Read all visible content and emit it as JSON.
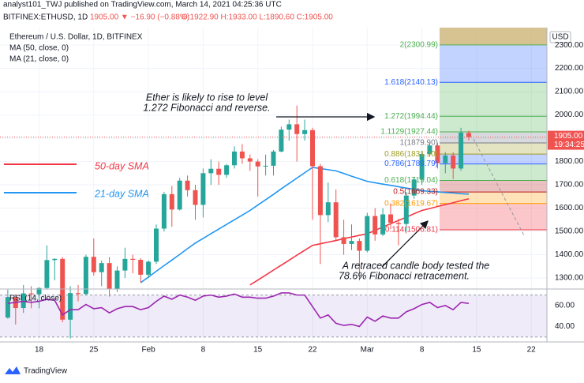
{
  "header": {
    "publisher": "analyst101_TWJ published on TradingView.com, March 14, 2021 04:25:36 UTC",
    "symbol": "BITFINEX:ETHUSD, 1D",
    "change": "1905.00 ▼ −16.90 (−0.88%)",
    "ohlc": "O:1922.90 H:1933.00 L:1890.60 C:1905.00",
    "brand": "TradingView"
  },
  "chart_data": [
    {
      "type": "candlestick",
      "title": "Ethereum / U.S. Dollar, 1D, BITFINEX",
      "axis_unit": "USD",
      "price_label": "1905.00",
      "countdown": "19:34:25",
      "x": [
        "2021-01-14",
        "2021-01-15",
        "2021-01-16",
        "2021-01-17",
        "2021-01-18",
        "2021-01-19",
        "2021-01-20",
        "2021-01-21",
        "2021-01-22",
        "2021-01-23",
        "2021-01-24",
        "2021-01-25",
        "2021-01-26",
        "2021-01-27",
        "2021-01-28",
        "2021-01-29",
        "2021-01-30",
        "2021-01-31",
        "2021-02-01",
        "2021-02-02",
        "2021-02-03",
        "2021-02-04",
        "2021-02-05",
        "2021-02-06",
        "2021-02-07",
        "2021-02-08",
        "2021-02-09",
        "2021-02-10",
        "2021-02-11",
        "2021-02-12",
        "2021-02-13",
        "2021-02-14",
        "2021-02-15",
        "2021-02-16",
        "2021-02-17",
        "2021-02-18",
        "2021-02-19",
        "2021-02-20",
        "2021-02-21",
        "2021-02-22",
        "2021-02-23",
        "2021-02-24",
        "2021-02-25",
        "2021-02-26",
        "2021-02-27",
        "2021-02-28",
        "2021-03-01",
        "2021-03-02",
        "2021-03-03",
        "2021-03-04",
        "2021-03-05",
        "2021-03-06",
        "2021-03-07",
        "2021-03-08",
        "2021-03-09",
        "2021-03-10",
        "2021-03-11",
        "2021-03-12",
        "2021-03-13",
        "2021-03-14"
      ],
      "open": [
        1130,
        1218,
        1171,
        1234,
        1230,
        1257,
        1377,
        1382,
        1121,
        1235,
        1231,
        1391,
        1325,
        1364,
        1252,
        1332,
        1382,
        1378,
        1314,
        1370,
        1512,
        1660,
        1594,
        1718,
        1677,
        1614,
        1750,
        1769,
        1743,
        1784,
        1843,
        1814,
        1800,
        1779,
        1782,
        1843,
        1937,
        1960,
        1918,
        1935,
        1780,
        1570,
        1625,
        1475,
        1446,
        1459,
        1417,
        1566,
        1487,
        1573,
        1537,
        1532,
        1654,
        1723,
        1832,
        1869,
        1793,
        1826,
        1770,
        1922.9
      ],
      "high": [
        1250,
        1230,
        1270,
        1265,
        1260,
        1440,
        1385,
        1390,
        1265,
        1270,
        1400,
        1470,
        1375,
        1390,
        1350,
        1430,
        1400,
        1385,
        1375,
        1530,
        1670,
        1695,
        1730,
        1740,
        1700,
        1770,
        1810,
        1800,
        1790,
        1865,
        1875,
        1830,
        1810,
        1830,
        1850,
        1950,
        1980,
        2040,
        1980,
        1945,
        1790,
        1710,
        1680,
        1550,
        1530,
        1470,
        1580,
        1600,
        1600,
        1620,
        1555,
        1670,
        1735,
        1840,
        1880,
        1880,
        1840,
        1840,
        1945,
        1933
      ],
      "low": [
        1125,
        1100,
        1150,
        1170,
        1170,
        1250,
        1290,
        1110,
        1040,
        1200,
        1225,
        1310,
        1265,
        1220,
        1240,
        1300,
        1320,
        1280,
        1300,
        1360,
        1500,
        1520,
        1590,
        1650,
        1550,
        1560,
        1700,
        1700,
        1730,
        1770,
        1790,
        1760,
        1650,
        1740,
        1740,
        1840,
        1890,
        1800,
        1890,
        1550,
        1360,
        1540,
        1460,
        1400,
        1420,
        1290,
        1410,
        1460,
        1480,
        1510,
        1440,
        1500,
        1640,
        1700,
        1820,
        1770,
        1750,
        1725,
        1760,
        1890.6
      ],
      "close": [
        1218,
        1171,
        1234,
        1230,
        1257,
        1377,
        1382,
        1121,
        1235,
        1231,
        1391,
        1325,
        1364,
        1252,
        1332,
        1382,
        1378,
        1314,
        1370,
        1512,
        1660,
        1594,
        1718,
        1677,
        1614,
        1750,
        1769,
        1743,
        1784,
        1843,
        1814,
        1800,
        1779,
        1782,
        1843,
        1937,
        1960,
        1918,
        1935,
        1780,
        1570,
        1625,
        1475,
        1446,
        1459,
        1417,
        1566,
        1487,
        1573,
        1537,
        1532,
        1654,
        1723,
        1832,
        1869,
        1793,
        1826,
        1770,
        1924,
        1905
      ],
      "up_color": "#26a69a",
      "down_color": "#ef5350",
      "series": [
        {
          "name": "MA (50, close, 0)",
          "color": "#f23645",
          "values": [
            null,
            null,
            null,
            null,
            null,
            null,
            null,
            null,
            null,
            null,
            null,
            null,
            null,
            null,
            null,
            null,
            null,
            null,
            null,
            null,
            null,
            null,
            null,
            null,
            null,
            null,
            null,
            null,
            null,
            null,
            null,
            1270,
            1291,
            1312,
            1334,
            1355,
            1376,
            1398,
            1419,
            1440,
            1447,
            1454,
            1461,
            1469,
            1476,
            1483,
            1490,
            1504,
            1519,
            1533,
            1547,
            1561,
            1576,
            1590,
            1598,
            1607,
            1615,
            1623,
            1632,
            1640
          ]
        },
        {
          "name": "MA (21, close, 0)",
          "color": "#2196f3",
          "values": [
            null,
            null,
            null,
            null,
            null,
            null,
            null,
            null,
            null,
            null,
            null,
            null,
            null,
            null,
            null,
            null,
            null,
            1280,
            1304,
            1329,
            1353,
            1377,
            1401,
            1426,
            1450,
            1470,
            1490,
            1510,
            1530,
            1550,
            1570,
            1590,
            1613,
            1636,
            1659,
            1683,
            1706,
            1729,
            1752,
            1775,
            1770,
            1765,
            1760,
            1749,
            1737,
            1726,
            1715,
            1709,
            1703,
            1698,
            1692,
            1686,
            1681,
            1675,
            1672,
            1670,
            1667,
            1665,
            1662,
            1660
          ]
        }
      ],
      "xlim": [
        "2021-01-13",
        "2021-03-24"
      ],
      "xticks": [
        {
          "value": "2021-01-18",
          "label": "18"
        },
        {
          "value": "2021-01-25",
          "label": "25"
        },
        {
          "value": "2021-02-01",
          "label": "Feb"
        },
        {
          "value": "2021-02-08",
          "label": "8"
        },
        {
          "value": "2021-02-15",
          "label": "15"
        },
        {
          "value": "2021-02-22",
          "label": "22"
        },
        {
          "value": "2021-03-01",
          "label": "Mar"
        },
        {
          "value": "2021-03-08",
          "label": "8"
        },
        {
          "value": "2021-03-15",
          "label": "15"
        },
        {
          "value": "2021-03-22",
          "label": "22"
        }
      ],
      "ylim": [
        1256,
        2375
      ],
      "yticks": [
        {
          "value": 1300,
          "label": "1300.00"
        },
        {
          "value": 1400,
          "label": "1400.00"
        },
        {
          "value": 1500,
          "label": "1500.00"
        },
        {
          "value": 1600,
          "label": "1600.00"
        },
        {
          "value": 1700,
          "label": "1700.00"
        },
        {
          "value": 1800,
          "label": "1800.00"
        },
        {
          "value": 1900,
          "label": "1900.00"
        },
        {
          "value": 2000,
          "label": "2000.00"
        },
        {
          "value": 2100,
          "label": "2100.00"
        },
        {
          "value": 2200,
          "label": "2200.00"
        },
        {
          "value": 2300,
          "label": "2300.00"
        }
      ],
      "grid": true,
      "fib_levels": [
        {
          "value": 1506.81,
          "label": "0.114(1506.81)",
          "color": "#f23645"
        },
        {
          "value": 1619.67,
          "label": "0.382(1619.67)",
          "color": "#ff9800"
        },
        {
          "value": 1669.33,
          "label": "0.5(1669.33)",
          "color": "#b71c1c"
        },
        {
          "value": 1719.04,
          "label": "0.618(1719.04)",
          "color": "#4caf50"
        },
        {
          "value": 1789.79,
          "label": "0.786(1789.79)",
          "color": "#2962ff"
        },
        {
          "value": 1831.9,
          "label": "0.886(1831.90)",
          "color": "#9e9d24"
        },
        {
          "value": 1879.9,
          "label": "1(1879.90)",
          "color": "#787b86"
        },
        {
          "value": 1927.44,
          "label": "1.1129(1927.44)",
          "color": "#4caf50"
        },
        {
          "value": 1994.44,
          "label": "1.272(1994.44)",
          "color": "#4caf50"
        },
        {
          "value": 2140.13,
          "label": "1.618(2140.13)",
          "color": "#2962ff"
        },
        {
          "value": 2300.99,
          "label": "2(2300.99)",
          "color": "#4caf50"
        }
      ],
      "annotations": [
        "Ether is likely to rise to level",
        "1.272 Fibonacci and reverse.",
        "50-day SMA",
        "21-day SMA",
        "A retraced candle body tested the",
        "78.6% Fibonacci retracement."
      ]
    },
    {
      "type": "line",
      "series": [
        {
          "name": "RSI (14, close)",
          "color": "#9c27b0",
          "values": [
            62,
            63,
            64,
            63,
            64,
            66,
            65,
            51,
            56,
            56,
            61,
            57,
            58,
            53,
            57,
            59,
            59,
            56,
            58,
            64,
            69,
            66,
            70,
            68,
            65,
            69,
            70,
            68,
            69,
            71,
            68,
            68,
            67,
            67,
            69,
            72,
            72,
            70,
            70,
            59,
            48,
            51,
            43,
            41,
            42,
            40,
            49,
            45,
            50,
            48,
            48,
            54,
            57,
            61,
            63,
            58,
            60,
            56,
            63,
            62
          ]
        }
      ],
      "band": [
        30,
        70
      ],
      "ylim": [
        26,
        75
      ],
      "yticks": [
        {
          "value": 40,
          "label": "40.00"
        },
        {
          "value": 60,
          "label": "60.00"
        }
      ]
    }
  ]
}
